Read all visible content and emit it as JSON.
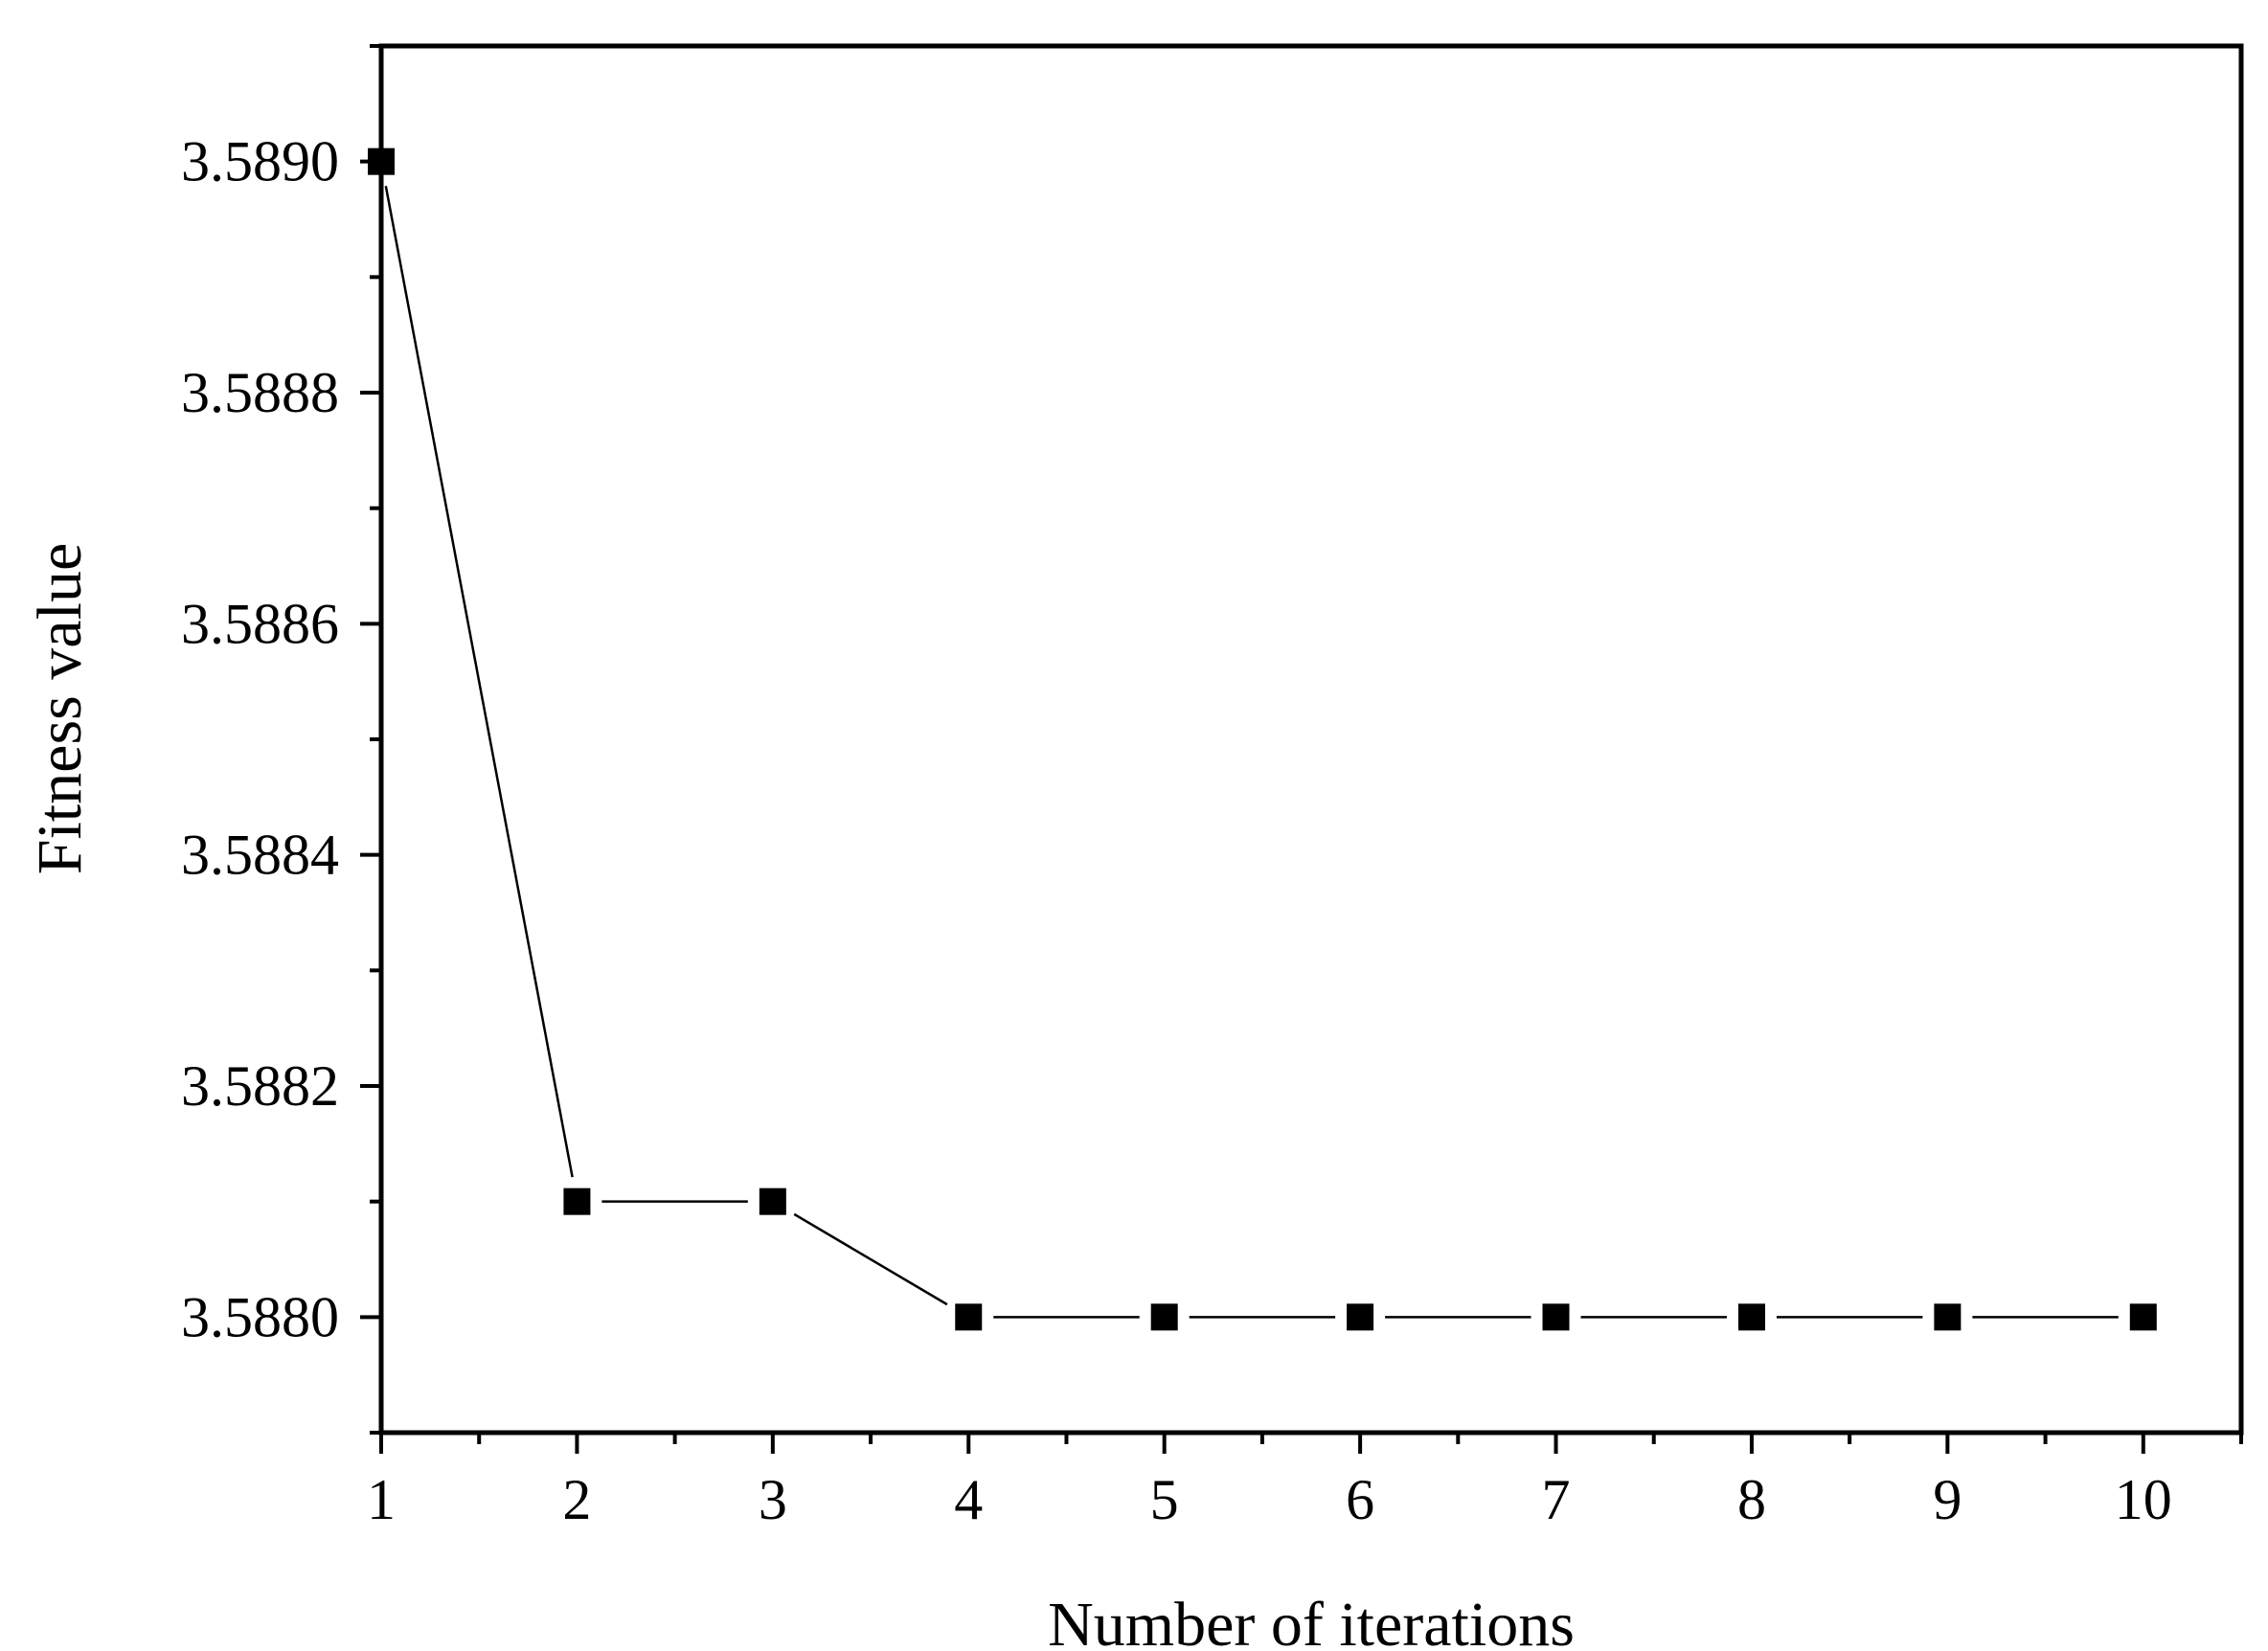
{
  "chart_data": {
    "type": "line",
    "title": "",
    "xlabel": "Number of iterations",
    "ylabel": "Fitness value",
    "x": [
      1,
      2,
      3,
      4,
      5,
      6,
      7,
      8,
      9,
      10
    ],
    "series": [
      {
        "values": [
          3.589,
          3.5881,
          3.5881,
          3.588,
          3.588,
          3.588,
          3.588,
          3.588,
          3.588,
          3.588
        ]
      }
    ],
    "xlim": [
      1,
      10.5
    ],
    "ylim": [
      3.5879,
      3.5891
    ],
    "x_ticks": [
      "1",
      "2",
      "3",
      "4",
      "5",
      "6",
      "7",
      "8",
      "9",
      "10"
    ],
    "y_ticks": [
      "3.5880",
      "3.5882",
      "3.5884",
      "3.5886",
      "3.5888",
      "3.5890"
    ],
    "marker": "square",
    "grid": false,
    "legend": "none",
    "colors": {
      "line": "#000000",
      "marker": "#000000",
      "axes": "#000000"
    }
  }
}
